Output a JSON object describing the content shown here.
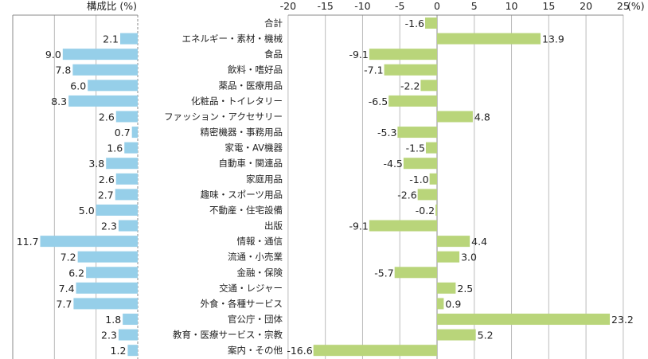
{
  "chart_data": [
    {
      "type": "bar",
      "orientation": "horizontal",
      "direction": "leftward",
      "title": "構成比 (%)",
      "xlim": [
        0,
        15
      ],
      "grid": true,
      "color": "#96cfe9",
      "categories": [
        "合計",
        "エネルギー・素材・機械",
        "食品",
        "飲料・嗜好品",
        "薬品・医療用品",
        "化粧品・トイレタリー",
        "ファッション・アクセサリー",
        "精密機器・事務用品",
        "家電・AV機器",
        "自動車・関連品",
        "家庭用品",
        "趣味・スポーツ用品",
        "不動産・住宅設備",
        "出版",
        "情報・通信",
        "流通・小売業",
        "金融・保険",
        "交通・レジャー",
        "外食・各種サービス",
        "官公庁・団体",
        "教育・医療サービス・宗教",
        "案内・その他"
      ],
      "values": [
        null,
        2.1,
        9.0,
        7.8,
        6.0,
        8.3,
        2.6,
        0.7,
        1.6,
        3.8,
        2.6,
        2.7,
        5.0,
        2.3,
        11.7,
        7.2,
        6.2,
        7.4,
        7.7,
        1.8,
        2.3,
        1.2
      ],
      "labels": [
        "",
        "2.1",
        "9.0",
        "7.8",
        "6.0",
        "8.3",
        "2.6",
        "0.7",
        "1.6",
        "3.8",
        "2.6",
        "2.7",
        "5.0",
        "2.3",
        "11.7",
        "7.2",
        "6.2",
        "7.4",
        "7.7",
        "1.8",
        "2.3",
        "1.2"
      ]
    },
    {
      "type": "bar",
      "orientation": "horizontal",
      "xlim": [
        -20,
        25
      ],
      "xunit": "(%)",
      "xticks": [
        "-20",
        "-15",
        "-10",
        "-5",
        "0",
        "5",
        "10",
        "15",
        "20",
        "25"
      ],
      "grid": true,
      "color": "#b9d57a",
      "values": [
        -1.6,
        13.9,
        -9.1,
        -7.1,
        -2.2,
        -6.5,
        4.8,
        -5.3,
        -1.5,
        -4.5,
        -1.0,
        -2.6,
        -0.2,
        -9.1,
        4.4,
        3.0,
        -5.7,
        2.5,
        0.9,
        23.2,
        5.2,
        -16.6
      ],
      "labels": [
        "-1.6",
        "13.9",
        "-9.1",
        "-7.1",
        "-2.2",
        "-6.5",
        "4.8",
        "-5.3",
        "-1.5",
        "-4.5",
        "-1.0",
        "-2.6",
        "-0.2",
        "-9.1",
        "4.4",
        "3.0",
        "-5.7",
        "2.5",
        "0.9",
        "23.2",
        "5.2",
        "-16.6"
      ]
    }
  ]
}
